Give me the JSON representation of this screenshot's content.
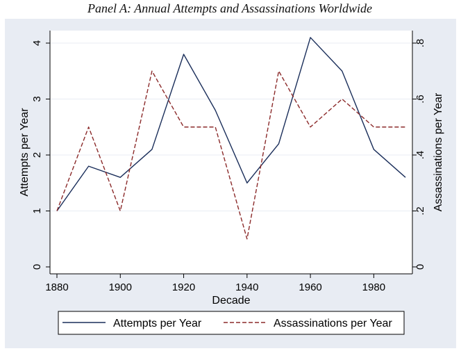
{
  "chart_data": {
    "type": "line",
    "title": "Panel A:  Annual Attempts and Assassinations Worldwide",
    "xlabel": "Decade",
    "ylabel_left": "Attempts per Year",
    "ylabel_right": "Assassinations per Year",
    "x": [
      1880,
      1890,
      1900,
      1910,
      1920,
      1930,
      1940,
      1950,
      1960,
      1970,
      1980,
      1990
    ],
    "xlim": [
      1880,
      1990
    ],
    "xticks": [
      "1880",
      "1900",
      "1920",
      "1940",
      "1960",
      "1980"
    ],
    "ylim_left": [
      0,
      4
    ],
    "yticks_left": [
      "0",
      "1",
      "2",
      "3",
      "4"
    ],
    "ylim_right": [
      0,
      0.8
    ],
    "yticks_right": [
      "0",
      ".2",
      ".4",
      ".6",
      ".8"
    ],
    "series": [
      {
        "name": "Attempts per Year",
        "axis": "left",
        "color": "#1a2e5a",
        "style": "solid",
        "values": [
          1.0,
          1.8,
          1.6,
          2.1,
          3.8,
          2.8,
          1.5,
          2.2,
          4.1,
          3.5,
          2.1,
          1.6
        ]
      },
      {
        "name": "Assassinations per Year",
        "axis": "right",
        "color": "#8b2a2a",
        "style": "dashed",
        "values": [
          0.2,
          0.5,
          0.2,
          0.7,
          0.5,
          0.5,
          0.1,
          0.7,
          0.5,
          0.6,
          0.5,
          0.5
        ]
      }
    ],
    "grid": true,
    "legend_position": "bottom"
  },
  "colors": {
    "outer_background": "#e8ecf3",
    "plot_background": "#ffffff",
    "grid": "#e8ecf3"
  }
}
